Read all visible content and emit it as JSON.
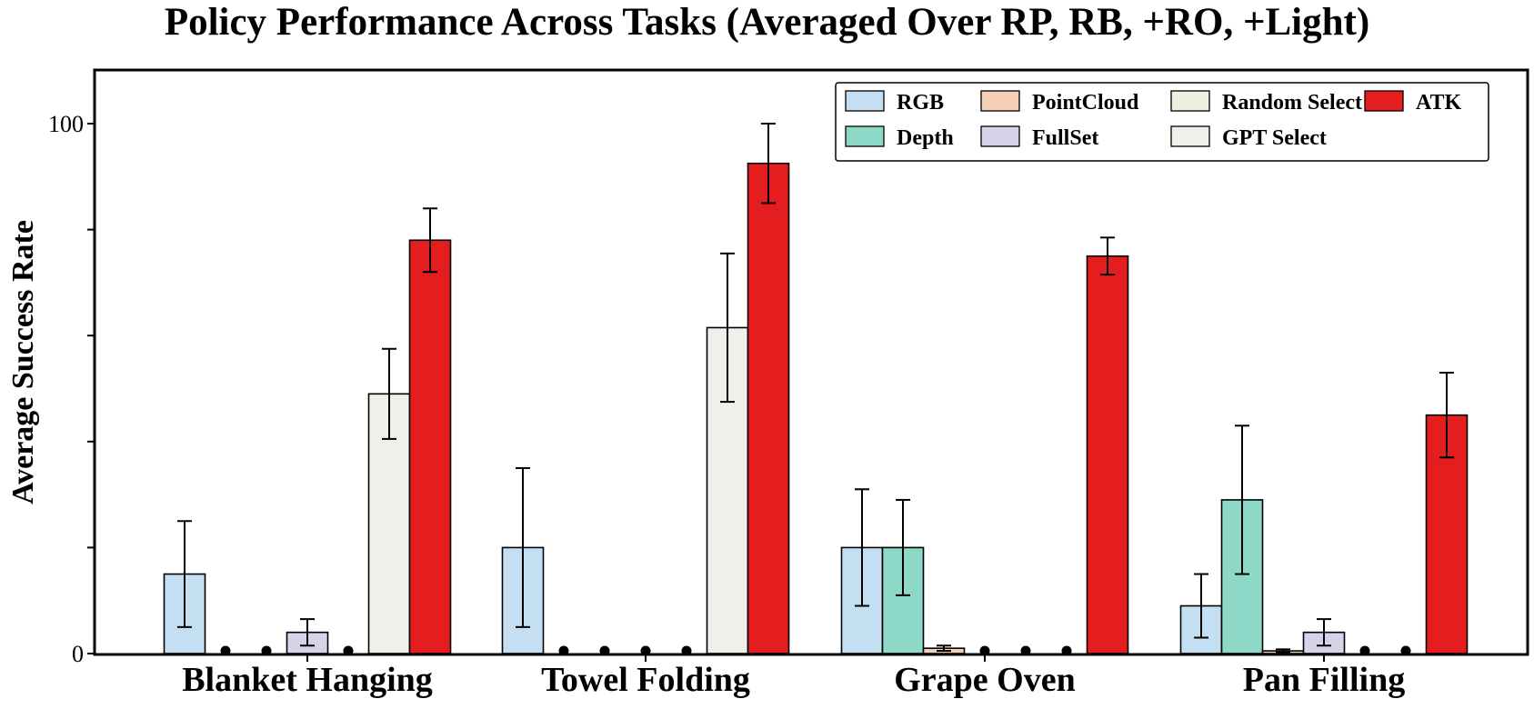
{
  "chart_data": {
    "type": "bar",
    "title": "Policy Performance Across Tasks (Averaged Over RP, RB, +RO, +Light)",
    "xlabel": "",
    "ylabel": "Average Success Rate",
    "ylim": [
      0,
      100
    ],
    "yticks": [
      0,
      100
    ],
    "grid": false,
    "legend_position": "top-right",
    "categories": [
      "Blanket Hanging",
      "Towel Folding",
      "Grape Oven",
      "Pan Filling"
    ],
    "series": [
      {
        "name": "RGB",
        "color": "#c5dff2",
        "values": [
          15,
          20,
          20,
          9
        ],
        "errors": [
          10,
          15,
          11,
          6
        ]
      },
      {
        "name": "Depth",
        "color": "#8ed8c8",
        "values": [
          0,
          0,
          20,
          29
        ],
        "errors": [
          0,
          0,
          9,
          14
        ]
      },
      {
        "name": "PointCloud",
        "color": "#f4cfb4",
        "values": [
          0,
          0,
          1,
          0.5
        ],
        "errors": [
          0,
          0,
          0.5,
          0.3
        ]
      },
      {
        "name": "FullSet",
        "color": "#d6d3e8",
        "values": [
          4,
          0,
          0,
          4
        ],
        "errors": [
          2.5,
          0,
          0,
          2.5
        ]
      },
      {
        "name": "Random Select",
        "color": "#eef0e2",
        "values": [
          0,
          0,
          0,
          0
        ],
        "errors": [
          0,
          0,
          0,
          0
        ]
      },
      {
        "name": "GPT Select",
        "color": "#f0efea",
        "values": [
          49,
          61.5,
          0,
          0
        ],
        "errors": [
          8.5,
          14,
          0,
          0
        ]
      },
      {
        "name": "ATK",
        "color": "#e41e1e",
        "values": [
          78,
          92.5,
          75,
          45
        ],
        "errors": [
          6,
          7.5,
          3.5,
          8
        ]
      }
    ]
  }
}
